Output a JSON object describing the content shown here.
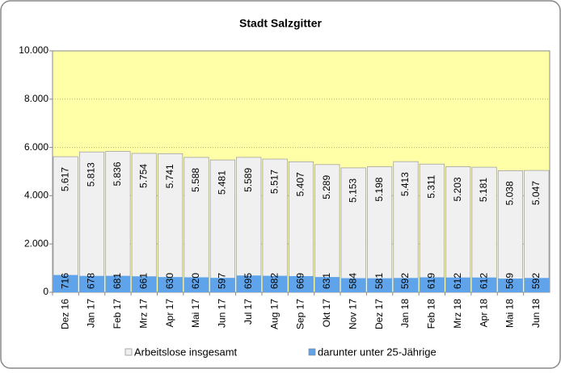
{
  "chart_data": {
    "type": "bar",
    "title": "Stadt Salzgitter",
    "categories": [
      "Dez 16",
      "Jan 17",
      "Feb 17",
      "Mrz 17",
      "Apr 17",
      "Mai 17",
      "Jun 17",
      "Jul 17",
      "Aug 17",
      "Sep 17",
      "Okt 17",
      "Nov 17",
      "Dez 17",
      "Jan 18",
      "Feb 18",
      "Mrz 18",
      "Apr 18",
      "Mai 18",
      "Jun 18"
    ],
    "series": [
      {
        "name": "Arbeitslose insgesamt",
        "color": "#f0f0f0",
        "values": [
          5617,
          5813,
          5836,
          5754,
          5741,
          5588,
          5481,
          5589,
          5517,
          5407,
          5289,
          5153,
          5198,
          5413,
          5311,
          5203,
          5181,
          5038,
          5047
        ],
        "value_labels": [
          "5.617",
          "5.813",
          "5.836",
          "5.754",
          "5.741",
          "5.588",
          "5.481",
          "5.589",
          "5.517",
          "5.407",
          "5.289",
          "5.153",
          "5.198",
          "5.413",
          "5.311",
          "5.203",
          "5.181",
          "5.038",
          "5.047"
        ]
      },
      {
        "name": "darunter unter 25-Jährige",
        "color": "#5fa4ea",
        "values": [
          716,
          678,
          681,
          661,
          630,
          620,
          597,
          695,
          682,
          669,
          631,
          584,
          581,
          592,
          619,
          612,
          612,
          569,
          592
        ]
      }
    ],
    "ylim": [
      0,
      10000
    ],
    "yticks": [
      {
        "value": 0,
        "label": "0"
      },
      {
        "value": 2000,
        "label": "2.000"
      },
      {
        "value": 4000,
        "label": "4.000"
      },
      {
        "value": 6000,
        "label": "6.000"
      },
      {
        "value": 8000,
        "label": "8.000"
      },
      {
        "value": 10000,
        "label": "10.000"
      }
    ],
    "grid": true
  }
}
